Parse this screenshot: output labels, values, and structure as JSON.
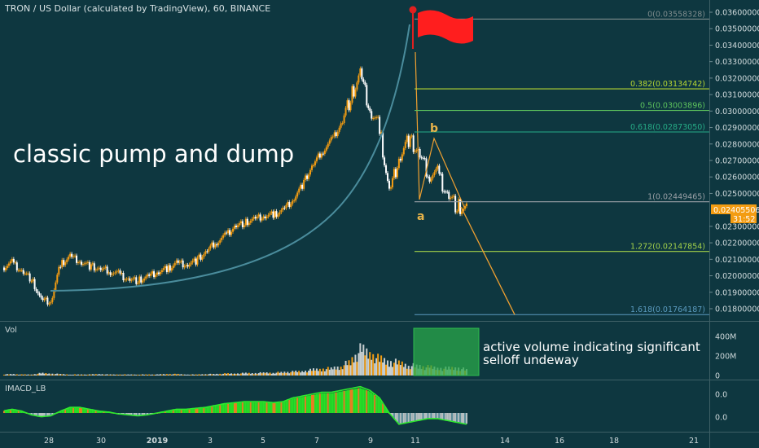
{
  "header": {
    "title": "TRON / US Dollar (calculated by TradingView), 60, BINANCE"
  },
  "annotations": {
    "main": "classic pump and dump",
    "wave_a": "a",
    "wave_b": "b",
    "volume_line1": "active volume indicating significant",
    "volume_line2": "selloff undeway"
  },
  "price_axis": {
    "ticks": [
      "0.03600000",
      "0.03500000",
      "0.03400000",
      "0.03300000",
      "0.03200000",
      "0.03100000",
      "0.03000000",
      "0.02900000",
      "0.02800000",
      "0.02700000",
      "0.02600000",
      "0.02500000",
      "0.02300000",
      "0.02200000",
      "0.02100000",
      "0.02000000",
      "0.01900000",
      "0.01800000"
    ],
    "last_price": "0.02405506",
    "countdown": "31:52",
    "colors": {
      "badge": "#f39c12"
    }
  },
  "volume": {
    "label": "Vol",
    "ticks": [
      "400M",
      "200M",
      "0"
    ]
  },
  "imacd": {
    "label": "IMACD_LB",
    "ticks": [
      "0.0",
      "0.0"
    ]
  },
  "time_axis": {
    "ticks": [
      "28",
      "30",
      "2019",
      "3",
      "5",
      "7",
      "9",
      "11",
      "14",
      "16",
      "18",
      "21"
    ]
  },
  "chart_data": {
    "type": "candlestick",
    "title": "TRON / US Dollar (calculated by TradingView), 60, BINANCE",
    "x_unit": "days (Dec 2018 - Jan 2019)",
    "close": [
      0.0205,
      0.0208,
      0.0203,
      0.0198,
      0.0185,
      0.0184,
      0.0207,
      0.0212,
      0.0209,
      0.0206,
      0.0204,
      0.0203,
      0.0201,
      0.0198,
      0.0197,
      0.0199,
      0.0202,
      0.0204,
      0.0208,
      0.0207,
      0.0209,
      0.0214,
      0.022,
      0.0224,
      0.023,
      0.0232,
      0.0234,
      0.0236,
      0.0237,
      0.024,
      0.0246,
      0.0255,
      0.0266,
      0.0275,
      0.0282,
      0.0292,
      0.0308,
      0.0322,
      0.03,
      0.029,
      0.025,
      0.0272,
      0.0283,
      0.0275,
      0.0262,
      0.0262,
      0.025,
      0.0242,
      0.024
    ],
    "ylim": [
      0.0176,
      0.0362
    ],
    "fib_levels": [
      {
        "label": "0",
        "value": 0.03558328
      },
      {
        "label": "0.382",
        "value": 0.03134742
      },
      {
        "label": "0.5",
        "value": 0.03003896
      },
      {
        "label": "0.618",
        "value": 0.0287305
      },
      {
        "label": "1",
        "value": 0.02449465
      },
      {
        "label": "1.272",
        "value": 0.02147854
      },
      {
        "label": "1.618",
        "value": 0.01764187
      }
    ],
    "fib_colors": [
      "#7f8c8d",
      "#b7d732",
      "#5dc35d",
      "#27ad87",
      "#9aa0a6",
      "#a3d14a",
      "#5b9bbf"
    ],
    "volume_series": [
      0.02,
      0.03,
      0.02,
      0.02,
      0.05,
      0.04,
      0.03,
      0.02,
      0.02,
      0.02,
      0.03,
      0.02,
      0.02,
      0.02,
      0.02,
      0.02,
      0.02,
      0.03,
      0.03,
      0.02,
      0.02,
      0.03,
      0.03,
      0.04,
      0.04,
      0.05,
      0.05,
      0.06,
      0.06,
      0.07,
      0.08,
      0.09,
      0.12,
      0.14,
      0.15,
      0.2,
      0.3,
      0.55,
      0.48,
      0.35,
      0.3,
      0.28,
      0.22,
      0.2,
      0.18,
      0.16,
      0.15,
      0.17,
      0.12
    ],
    "imacd_series": [
      0.1,
      0.2,
      0.1,
      -0.1,
      -0.2,
      -0.15,
      0.1,
      0.3,
      0.3,
      0.2,
      0.1,
      0.05,
      -0.05,
      -0.1,
      -0.15,
      -0.1,
      0.0,
      0.1,
      0.2,
      0.2,
      0.25,
      0.3,
      0.4,
      0.5,
      0.55,
      0.6,
      0.6,
      0.6,
      0.55,
      0.6,
      0.8,
      0.9,
      1.0,
      1.1,
      1.1,
      1.2,
      1.3,
      1.4,
      1.2,
      0.8,
      0.0,
      -0.6,
      -0.5,
      -0.4,
      -0.3,
      -0.3,
      -0.4,
      -0.5,
      -0.6
    ],
    "projection_target": 0.01764187
  }
}
